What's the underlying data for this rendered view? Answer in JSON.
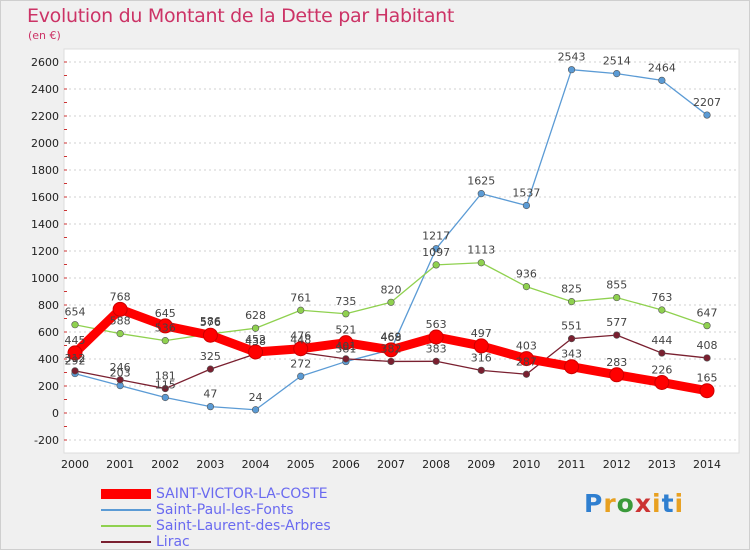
{
  "chart_data": {
    "type": "line",
    "title": "Evolution du Montant de la Dette par Habitant",
    "unit": "(en €)",
    "x": [
      "2000",
      "2001",
      "2002",
      "2003",
      "2004",
      "2005",
      "2006",
      "2007",
      "2008",
      "2009",
      "2010",
      "2011",
      "2012",
      "2013",
      "2014"
    ],
    "ylim": [
      -200,
      2600
    ],
    "yticks": [
      "-200",
      "0",
      "200",
      "400",
      "600",
      "800",
      "1000",
      "1200",
      "1400",
      "1600",
      "1800",
      "2000",
      "2200",
      "2400",
      "2600"
    ],
    "series": [
      {
        "name": "SAINT-VICTOR-LA-COSTE",
        "color": "#ff0000",
        "values": [
          445,
          768,
          645,
          576,
          452,
          476,
          521,
          468,
          563,
          497,
          403,
          343,
          283,
          226,
          165
        ],
        "labels": [
          "445",
          "768",
          "645",
          "576",
          "452",
          "476",
          "521",
          "468",
          "563",
          "497",
          "403",
          "343",
          "283",
          "226",
          "165"
        ]
      },
      {
        "name": "Saint-Paul-les-Fonts",
        "color": "#5b9bd5",
        "values": [
          292,
          203,
          115,
          47,
          24,
          272,
          381,
          469,
          1217,
          1625,
          1537,
          2543,
          2514,
          2464,
          2207
        ],
        "labels": [
          "292",
          "203",
          "115",
          "47",
          "24",
          "272",
          "381",
          "469",
          "1217",
          "1625",
          "1537",
          "2543",
          "2514",
          "2464",
          "2207"
        ]
      },
      {
        "name": "Saint-Laurent-des-Arbres",
        "color": "#8fd14f",
        "values": [
          654,
          588,
          536,
          586,
          628,
          761,
          735,
          820,
          1097,
          1113,
          936,
          825,
          855,
          763,
          647
        ],
        "labels": [
          "654",
          "588",
          "536",
          "586",
          "628",
          "761",
          "735",
          "820",
          "1097",
          "1113",
          "936",
          "825",
          "855",
          "763",
          "647"
        ]
      },
      {
        "name": "Lirac",
        "color": "#7a2030",
        "values": [
          312,
          246,
          181,
          325,
          438,
          448,
          401,
          382,
          383,
          316,
          287,
          551,
          577,
          444,
          408
        ],
        "labels": [
          "312",
          "246",
          "181",
          "325",
          "438",
          "448",
          "401",
          "382",
          "383",
          "316",
          "287",
          "551",
          "577",
          "444",
          "408"
        ]
      }
    ]
  },
  "logo": {
    "text": "Proxiti",
    "letters": [
      "P",
      "r",
      "o",
      "x",
      "i",
      "t",
      "i"
    ]
  }
}
